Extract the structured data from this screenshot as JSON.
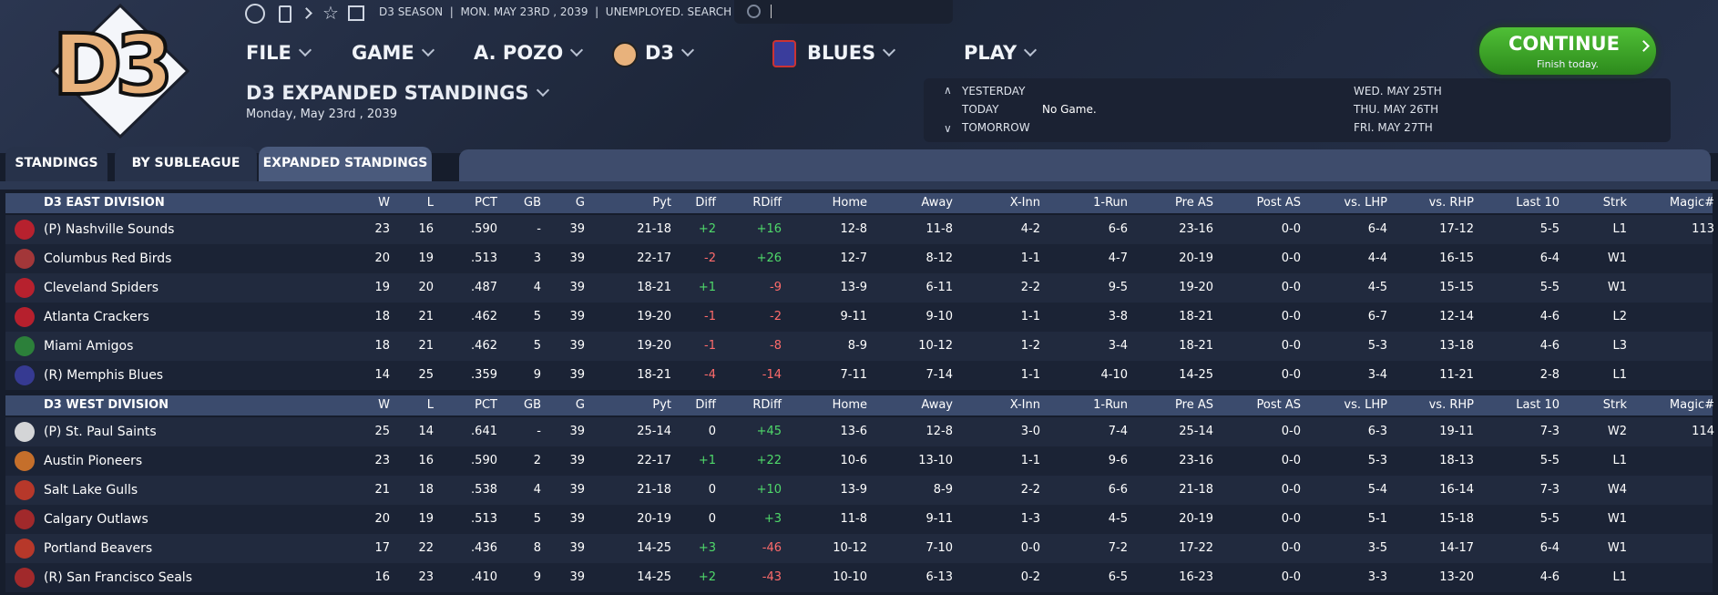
{
  "header": {
    "logo": "D3",
    "season": "D3 SEASON",
    "date": "MON. MAY 23RD , 2039",
    "status": "UNEMPLOYED. SEARCH JOBS..."
  },
  "menu": [
    "FILE",
    "GAME",
    "A. POZO",
    "D3",
    "BLUES",
    "PLAY"
  ],
  "page_title": "D3 EXPANDED STANDINGS",
  "page_subtitle": "Monday, May 23rd , 2039",
  "schedule": {
    "left": [
      {
        "label": "YESTERDAY"
      },
      {
        "label": "TODAY",
        "info": "No Game."
      },
      {
        "label": "TOMORROW"
      }
    ],
    "right": [
      "WED. MAY 25TH",
      "THU. MAY 26TH",
      "FRI. MAY 27TH"
    ]
  },
  "continue": {
    "label": "CONTINUE",
    "sub": "Finish today."
  },
  "tabs": [
    "STANDINGS",
    "BY SUBLEAGUE",
    "EXPANDED STANDINGS"
  ],
  "table": {
    "columns": [
      "W",
      "L",
      "PCT",
      "GB",
      "G",
      "Pyt",
      "Diff",
      "RDiff",
      "Home",
      "Away",
      "X-Inn",
      "1-Run",
      "Pre AS",
      "Post AS",
      "vs. LHP",
      "vs. RHP",
      "Last 10",
      "Strk",
      "Magic#"
    ],
    "divisions": [
      {
        "name": "D3 EAST DIVISION",
        "rows": [
          {
            "team": "(P) Nashville Sounds",
            "cells": [
              "23",
              "16",
              ".590",
              "-",
              "39",
              "21-18",
              "+2",
              "+16",
              "12-8",
              "11-8",
              "4-2",
              "6-6",
              "23-16",
              "0-0",
              "6-4",
              "17-12",
              "5-5",
              "L1",
              "113"
            ]
          },
          {
            "team": "Columbus Red Birds",
            "cells": [
              "20",
              "19",
              ".513",
              "3",
              "39",
              "22-17",
              "-2",
              "+26",
              "12-7",
              "8-12",
              "1-1",
              "4-7",
              "20-19",
              "0-0",
              "4-4",
              "16-15",
              "6-4",
              "W1"
            ]
          },
          {
            "team": "Cleveland Spiders",
            "cells": [
              "19",
              "20",
              ".487",
              "4",
              "39",
              "18-21",
              "+1",
              "-9",
              "13-9",
              "6-11",
              "2-2",
              "9-5",
              "19-20",
              "0-0",
              "4-5",
              "15-15",
              "5-5",
              "W1"
            ]
          },
          {
            "team": "Atlanta Crackers",
            "cells": [
              "18",
              "21",
              ".462",
              "5",
              "39",
              "19-20",
              "-1",
              "-2",
              "9-11",
              "9-10",
              "1-1",
              "3-8",
              "18-21",
              "0-0",
              "6-7",
              "12-14",
              "4-6",
              "L2"
            ]
          },
          {
            "team": "Miami Amigos",
            "cells": [
              "18",
              "21",
              ".462",
              "5",
              "39",
              "19-20",
              "-1",
              "-8",
              "8-9",
              "10-12",
              "1-2",
              "3-4",
              "18-21",
              "0-0",
              "5-3",
              "13-18",
              "4-6",
              "L3"
            ]
          },
          {
            "team": "(R) Memphis Blues",
            "cells": [
              "14",
              "25",
              ".359",
              "9",
              "39",
              "18-21",
              "-4",
              "-14",
              "7-11",
              "7-14",
              "1-1",
              "4-10",
              "14-25",
              "0-0",
              "3-4",
              "11-21",
              "2-8",
              "L1"
            ]
          }
        ]
      },
      {
        "name": "D3 WEST DIVISION",
        "rows": [
          {
            "team": "(P) St. Paul Saints",
            "cells": [
              "25",
              "14",
              ".641",
              "-",
              "39",
              "25-14",
              "0",
              "+45",
              "13-6",
              "12-8",
              "3-0",
              "7-4",
              "25-14",
              "0-0",
              "6-3",
              "19-11",
              "7-3",
              "W2",
              "114"
            ]
          },
          {
            "team": "Austin Pioneers",
            "cells": [
              "23",
              "16",
              ".590",
              "2",
              "39",
              "22-17",
              "+1",
              "+22",
              "10-6",
              "13-10",
              "1-1",
              "9-6",
              "23-16",
              "0-0",
              "5-3",
              "18-13",
              "5-5",
              "L1"
            ]
          },
          {
            "team": "Salt Lake Gulls",
            "cells": [
              "21",
              "18",
              ".538",
              "4",
              "39",
              "21-18",
              "0",
              "+10",
              "13-9",
              "8-9",
              "2-2",
              "6-6",
              "21-18",
              "0-0",
              "5-4",
              "16-14",
              "7-3",
              "W4"
            ]
          },
          {
            "team": "Calgary Outlaws",
            "cells": [
              "20",
              "19",
              ".513",
              "5",
              "39",
              "20-19",
              "0",
              "+3",
              "11-8",
              "9-11",
              "1-3",
              "4-5",
              "20-19",
              "0-0",
              "5-1",
              "15-18",
              "5-5",
              "W1"
            ]
          },
          {
            "team": "Portland Beavers",
            "cells": [
              "17",
              "22",
              ".436",
              "8",
              "39",
              "14-25",
              "+3",
              "-46",
              "10-12",
              "7-10",
              "0-0",
              "7-2",
              "17-22",
              "0-0",
              "3-5",
              "14-17",
              "6-4",
              "W1"
            ]
          },
          {
            "team": "(R) San Francisco Seals",
            "cells": [
              "16",
              "23",
              ".410",
              "9",
              "39",
              "14-25",
              "+2",
              "-43",
              "10-10",
              "6-13",
              "0-2",
              "6-5",
              "16-23",
              "0-0",
              "3-3",
              "13-20",
              "4-6",
              "L1"
            ]
          }
        ]
      }
    ]
  }
}
